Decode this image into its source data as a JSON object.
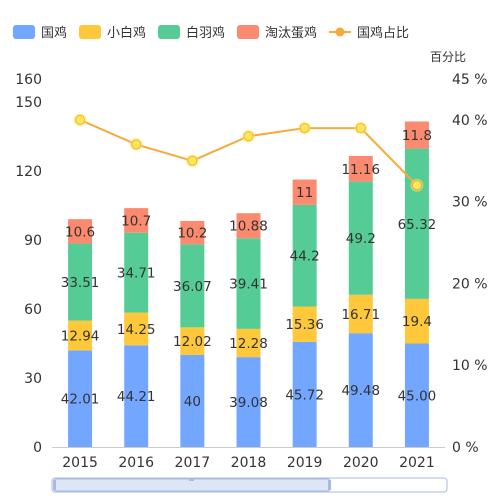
{
  "chart_data": {
    "type": "bar",
    "stacked": true,
    "categories": [
      "2015",
      "2016",
      "2017",
      "2018",
      "2019",
      "2020",
      "2021"
    ],
    "series": [
      {
        "name": "国鸡",
        "type": "bar",
        "color": "#73a6ff",
        "values": [
          42.01,
          44.21,
          40,
          39.08,
          45.72,
          49.48,
          45.0
        ],
        "labels": [
          "42.01",
          "44.21",
          "40",
          "39.08",
          "45.72",
          "49.48",
          "45.00"
        ]
      },
      {
        "name": "小白鸡",
        "type": "bar",
        "color": "#ffc83a",
        "values": [
          12.94,
          14.25,
          12.02,
          12.28,
          15.36,
          16.71,
          19.4
        ],
        "labels": [
          "12.94",
          "14.25",
          "12.02",
          "12.28",
          "15.36",
          "16.71",
          "19.4"
        ]
      },
      {
        "name": "白羽鸡",
        "type": "bar",
        "color": "#55cc95",
        "values": [
          33.51,
          34.71,
          36.07,
          39.41,
          44.2,
          49.2,
          65.32
        ],
        "labels": [
          "33.51",
          "34.71",
          "36.07",
          "39.41",
          "44.2",
          "49.2",
          "65.32"
        ]
      },
      {
        "name": "淘汰蛋鸡",
        "type": "bar",
        "color": "#fb8a70",
        "values": [
          10.6,
          10.7,
          10.2,
          10.88,
          11,
          11.16,
          11.8
        ],
        "labels": [
          "10.6",
          "10.7",
          "10.2",
          "10.88",
          "11",
          "11.16",
          "11.8"
        ]
      },
      {
        "name": "国鸡占比",
        "type": "line",
        "axis": "right",
        "color": "#f7a93a",
        "values": [
          40,
          37,
          35,
          38,
          39,
          39,
          32
        ]
      }
    ],
    "y_left": {
      "ticks": [
        0,
        30,
        60,
        90,
        120,
        150,
        160
      ],
      "tick_labels": [
        "0",
        "30",
        "60",
        "90",
        "120",
        "150",
        "160"
      ],
      "ylim": [
        0,
        160
      ]
    },
    "y_right": {
      "name": "百分比",
      "ticks": [
        0,
        10,
        20,
        30,
        40,
        45
      ],
      "tick_labels": [
        "0 %",
        "10 %",
        "20 %",
        "30 %",
        "40 %",
        "45 %"
      ],
      "ylim": [
        0,
        45
      ]
    },
    "legend_position": "top",
    "grid": false
  },
  "colors": {
    "axis": "#cccccc",
    "point_fill": "#ffe95a",
    "slider_fill": "#dde6f5",
    "slider_border": "#a9bbe0"
  }
}
